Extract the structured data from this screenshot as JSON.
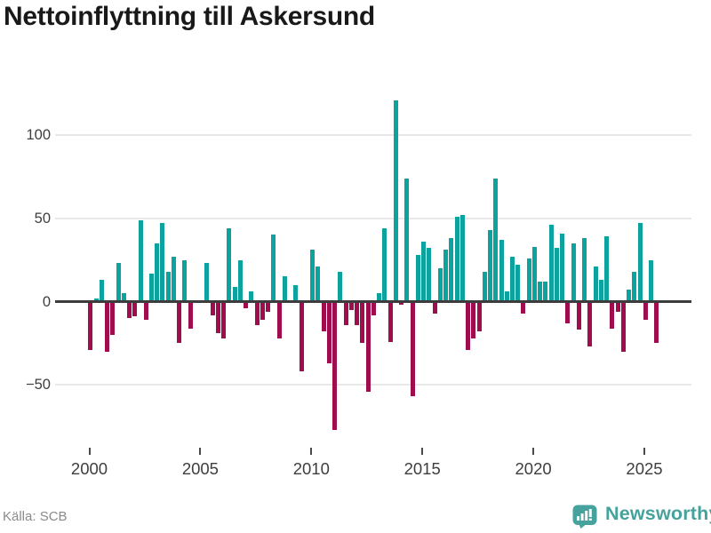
{
  "title": "Nettoinflyttning till Askersund",
  "source": "Källa: SCB",
  "brand": {
    "name": "Newsworthy"
  },
  "colors": {
    "positive": "#0ca39e",
    "negative": "#9f0d4e",
    "grid": "#e8e8e8",
    "axis": "#3c3c3c",
    "brand_teal": "#46a29c",
    "title_text": "#191919",
    "tick_text": "#3e3e3e",
    "source_text": "#8a8a8a"
  },
  "chart_data": {
    "type": "bar",
    "title": "Nettoinflyttning till Askersund",
    "frequency": "quarterly",
    "x_start": "2000-Q1",
    "x_end": "2025-Q3",
    "grid": true,
    "legend": false,
    "ylim": [
      -88,
      125
    ],
    "y_ticks": [
      {
        "label": "100",
        "value": 100
      },
      {
        "label": "50",
        "value": 50
      },
      {
        "label": "0",
        "value": 0
      },
      {
        "label": "−50",
        "value": -50
      }
    ],
    "x_ticks": [
      {
        "label": "2000",
        "year": 2000
      },
      {
        "label": "2005",
        "year": 2005
      },
      {
        "label": "2010",
        "year": 2010
      },
      {
        "label": "2015",
        "year": 2015
      },
      {
        "label": "2020",
        "year": 2020
      },
      {
        "label": "2025",
        "year": 2025
      }
    ],
    "series_by_year": [
      {
        "year": 2000,
        "quarters": [
          -29,
          2,
          13,
          -30
        ]
      },
      {
        "year": 2001,
        "quarters": [
          -20,
          23,
          5,
          -10
        ]
      },
      {
        "year": 2002,
        "quarters": [
          -9,
          49,
          -11,
          17
        ]
      },
      {
        "year": 2003,
        "quarters": [
          35,
          47,
          18,
          27
        ]
      },
      {
        "year": 2004,
        "quarters": [
          -25,
          25,
          -16,
          0
        ]
      },
      {
        "year": 2005,
        "quarters": [
          0,
          23,
          -8,
          -19
        ]
      },
      {
        "year": 2006,
        "quarters": [
          -22,
          44,
          9,
          25
        ]
      },
      {
        "year": 2007,
        "quarters": [
          -4,
          6,
          -14,
          -11
        ]
      },
      {
        "year": 2008,
        "quarters": [
          -6,
          40,
          -22,
          15
        ]
      },
      {
        "year": 2009,
        "quarters": [
          0,
          10,
          -42,
          0
        ]
      },
      {
        "year": 2010,
        "quarters": [
          31,
          21,
          -18,
          -37
        ]
      },
      {
        "year": 2011,
        "quarters": [
          -77,
          18,
          -14,
          -5
        ]
      },
      {
        "year": 2012,
        "quarters": [
          -14,
          -25,
          -54,
          -8
        ]
      },
      {
        "year": 2013,
        "quarters": [
          5,
          44,
          -24,
          121
        ]
      },
      {
        "year": 2014,
        "quarters": [
          -2,
          74,
          -57,
          28
        ]
      },
      {
        "year": 2015,
        "quarters": [
          36,
          32,
          -7,
          20
        ]
      },
      {
        "year": 2016,
        "quarters": [
          31,
          38,
          51,
          52
        ]
      },
      {
        "year": 2017,
        "quarters": [
          -29,
          -22,
          -18,
          18
        ]
      },
      {
        "year": 2018,
        "quarters": [
          43,
          74,
          37,
          6
        ]
      },
      {
        "year": 2019,
        "quarters": [
          27,
          22,
          -7,
          26
        ]
      },
      {
        "year": 2020,
        "quarters": [
          33,
          12,
          12,
          46
        ]
      },
      {
        "year": 2021,
        "quarters": [
          32,
          41,
          -13,
          35
        ]
      },
      {
        "year": 2022,
        "quarters": [
          -17,
          38,
          -27,
          21
        ]
      },
      {
        "year": 2023,
        "quarters": [
          13,
          39,
          -16,
          -6
        ]
      },
      {
        "year": 2024,
        "quarters": [
          -30,
          7,
          18,
          47
        ]
      },
      {
        "year": 2025,
        "quarters": [
          -11,
          25,
          -25
        ]
      }
    ]
  }
}
